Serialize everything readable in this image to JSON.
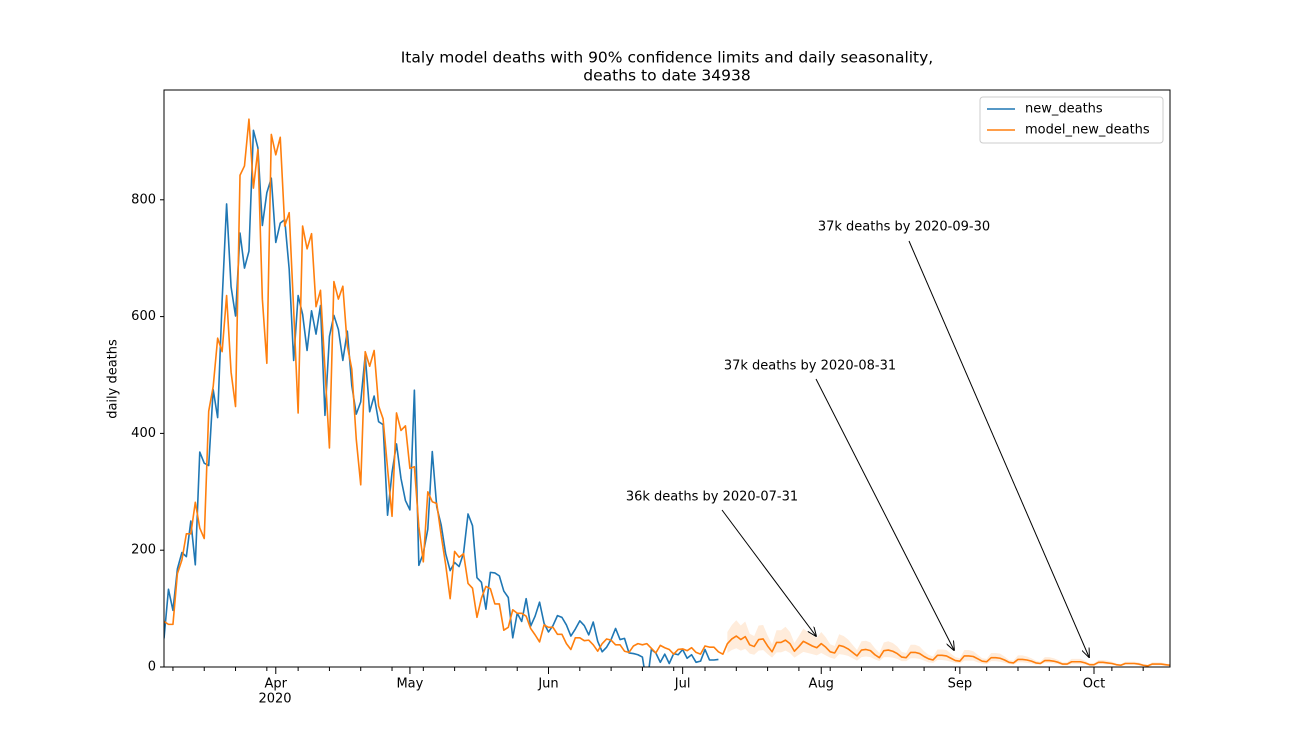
{
  "chart_data": {
    "type": "line",
    "title": [
      "Italy model deaths with 90% confidence limits and daily seasonality,",
      "deaths to date 34938"
    ],
    "y_label": "daily deaths",
    "x_year": "2020",
    "categories": [
      null,
      null,
      null,
      null,
      null,
      null,
      null,
      null,
      null,
      null,
      null,
      null,
      null,
      null,
      null,
      null,
      null,
      null,
      null,
      null,
      null,
      null,
      null,
      null,
      null,
      "Apr",
      null,
      null,
      null,
      null,
      null,
      null,
      null,
      null,
      null,
      null,
      null,
      null,
      null,
      null,
      null,
      null,
      null,
      null,
      null,
      null,
      null,
      null,
      null,
      null,
      null,
      null,
      null,
      null,
      null,
      "May",
      null,
      null,
      null,
      null,
      null,
      null,
      null,
      null,
      null,
      null,
      null,
      null,
      null,
      null,
      null,
      null,
      null,
      null,
      null,
      null,
      null,
      null,
      null,
      null,
      null,
      null,
      null,
      null,
      null,
      null,
      "Jun",
      null,
      null,
      null,
      null,
      null,
      null,
      null,
      null,
      null,
      null,
      null,
      null,
      null,
      null,
      null,
      null,
      null,
      null,
      null,
      null,
      null,
      null,
      null,
      null,
      null,
      null,
      null,
      null,
      null,
      "Jul",
      null,
      null,
      null,
      null,
      null,
      null,
      null,
      null,
      null,
      null,
      null,
      null,
      null,
      null,
      null,
      null,
      null,
      null,
      null,
      null,
      null,
      null,
      null,
      null,
      null,
      null,
      null,
      null,
      null,
      null,
      "Aug",
      null,
      null,
      null,
      null,
      null,
      null,
      null,
      null,
      null,
      null,
      null,
      null,
      null,
      null,
      null,
      null,
      null,
      null,
      null,
      null,
      null,
      null,
      null,
      null,
      null,
      null,
      null,
      null,
      null,
      null,
      "Sep",
      null,
      null,
      null,
      null,
      null,
      null,
      null,
      null,
      null,
      null,
      null,
      null,
      null,
      null,
      null,
      null,
      null,
      null,
      null,
      null,
      null,
      null,
      null,
      null,
      null,
      null,
      null,
      null,
      null,
      "Oct",
      null,
      null,
      null,
      null,
      null,
      null,
      null,
      null,
      null,
      null,
      null,
      null,
      null,
      null,
      null,
      null,
      null
    ],
    "series": [
      {
        "name": "new_deaths",
        "color": "#1f77b4",
        "values": [
          49,
          133,
          97,
          168,
          196,
          189,
          250,
          175,
          368,
          349,
          345,
          475,
          427,
          627,
          793,
          651,
          601,
          743,
          683,
          712,
          919,
          889,
          756,
          812,
          837,
          727,
          760,
          766,
          681,
          525,
          636,
          604,
          542,
          610,
          570,
          619,
          431,
          566,
          602,
          578,
          525,
          575,
          482,
          433,
          454,
          534,
          437,
          464,
          420,
          415,
          260,
          333,
          382,
          323,
          285,
          269,
          474,
          174,
          195,
          236,
          369,
          274,
          243,
          194,
          165,
          179,
          172,
          195,
          262,
          242,
          153,
          145,
          99,
          162,
          161,
          156,
          130,
          119,
          50,
          92,
          78,
          117,
          70,
          87,
          111,
          75,
          60,
          71,
          88,
          85,
          72,
          53,
          65,
          79,
          71,
          55,
          77,
          44,
          26,
          34,
          47,
          66,
          47,
          49,
          24,
          23,
          21,
          17,
          -31,
          30,
          24,
          8,
          22,
          6,
          23,
          21,
          30,
          15,
          21,
          8,
          10,
          30,
          12,
          12,
          13,
          null,
          null,
          null,
          null,
          null,
          null,
          null,
          null,
          null,
          null,
          null,
          null,
          null,
          null,
          null,
          null,
          null,
          null,
          null,
          null,
          null,
          null,
          null,
          null,
          null,
          null,
          null,
          null,
          null,
          null,
          null,
          null,
          null,
          null,
          null,
          null,
          null,
          null,
          null,
          null,
          null,
          null,
          null,
          null,
          null,
          null,
          null,
          null,
          null,
          null,
          null,
          null,
          null,
          null,
          null,
          null,
          null,
          null,
          null,
          null,
          null,
          null,
          null,
          null,
          null,
          null,
          null,
          null,
          null,
          null,
          null,
          null,
          null,
          null,
          null,
          null,
          null,
          null,
          null,
          null,
          null,
          null,
          null,
          null,
          null,
          null,
          null,
          null,
          null,
          null,
          null,
          null,
          null,
          null,
          null,
          null,
          null,
          null,
          null,
          null,
          null
        ]
      },
      {
        "name": "model_new_deaths",
        "color": "#ff7f0e",
        "values": [
          78,
          73,
          73,
          160,
          183,
          228,
          228,
          282,
          238,
          220,
          438,
          480,
          563,
          540,
          636,
          505,
          446,
          842,
          858,
          938,
          820,
          886,
          630,
          520,
          912,
          877,
          907,
          755,
          778,
          612,
          435,
          755,
          716,
          742,
          617,
          645,
          510,
          375,
          660,
          630,
          652,
          550,
          510,
          390,
          312,
          540,
          515,
          542,
          447,
          425,
          340,
          258,
          435,
          405,
          413,
          340,
          343,
          240,
          180,
          300,
          283,
          280,
          225,
          175,
          117,
          198,
          188,
          194,
          143,
          135,
          85,
          118,
          138,
          134,
          108,
          108,
          63,
          68,
          98,
          92,
          92,
          87,
          66,
          55,
          43,
          72,
          68,
          68,
          56,
          56,
          40,
          30,
          50,
          50,
          45,
          46,
          38,
          27,
          40,
          48,
          46,
          38,
          38,
          27,
          25,
          36,
          40,
          38,
          40,
          32,
          24,
          37,
          33,
          30,
          22,
          30,
          31,
          28,
          33,
          25,
          22,
          36,
          34,
          34,
          26,
          22,
          40,
          48,
          53,
          47,
          52,
          38,
          35,
          47,
          48,
          36,
          26,
          42,
          42,
          46,
          40,
          27,
          35,
          44,
          40,
          36,
          33,
          40,
          34,
          26,
          24,
          37,
          35,
          31,
          25,
          19,
          29,
          30,
          28,
          21,
          16,
          28,
          29,
          27,
          23,
          17,
          16,
          25,
          25,
          23,
          18,
          14,
          12,
          20,
          20,
          19,
          15,
          11,
          10,
          19,
          19,
          18,
          14,
          10,
          9,
          16,
          16,
          15,
          12,
          8,
          7,
          13,
          13,
          12,
          10,
          7,
          6,
          11,
          11,
          10,
          8,
          5,
          5,
          9,
          9,
          9,
          7,
          4,
          4,
          8,
          8,
          7,
          6,
          4,
          3,
          6,
          6,
          6,
          5,
          3,
          2,
          5,
          5,
          5,
          4,
          3
        ]
      }
    ],
    "band": {
      "color": "#ff7f0e",
      "lower": [
        null,
        null,
        null,
        null,
        null,
        null,
        null,
        null,
        null,
        null,
        null,
        null,
        null,
        null,
        null,
        null,
        null,
        null,
        null,
        null,
        null,
        null,
        null,
        null,
        null,
        null,
        null,
        null,
        null,
        null,
        null,
        null,
        null,
        null,
        null,
        null,
        null,
        null,
        null,
        null,
        null,
        null,
        null,
        null,
        null,
        null,
        null,
        null,
        null,
        null,
        null,
        null,
        null,
        null,
        null,
        null,
        null,
        null,
        null,
        null,
        null,
        null,
        null,
        null,
        null,
        null,
        null,
        null,
        null,
        null,
        null,
        null,
        null,
        null,
        null,
        null,
        null,
        null,
        null,
        null,
        null,
        null,
        null,
        null,
        null,
        null,
        null,
        null,
        null,
        null,
        null,
        null,
        null,
        null,
        null,
        null,
        null,
        null,
        null,
        null,
        null,
        null,
        null,
        null,
        null,
        null,
        null,
        null,
        null,
        null,
        null,
        null,
        null,
        null,
        null,
        null,
        null,
        null,
        null,
        null,
        null,
        null,
        null,
        null,
        null,
        null,
        24,
        29,
        32,
        28,
        31,
        23,
        21,
        28,
        29,
        22,
        16,
        25,
        25,
        28,
        24,
        16,
        21,
        26,
        24,
        22,
        20,
        24,
        20,
        16,
        14,
        22,
        21,
        19,
        15,
        11,
        17,
        18,
        17,
        13,
        10,
        17,
        17,
        16,
        14,
        10,
        10,
        15,
        15,
        14,
        11,
        8,
        7,
        12,
        12,
        11,
        9,
        7,
        6,
        11,
        11,
        11,
        8,
        6,
        5,
        10,
        10,
        9,
        7,
        5,
        4,
        8,
        8,
        7,
        6,
        4,
        4,
        7,
        7,
        6,
        5,
        3,
        3,
        5,
        5,
        5,
        4,
        2,
        2,
        5,
        5,
        4,
        4,
        2,
        2,
        4,
        4,
        4,
        3,
        2,
        1,
        3,
        3,
        3,
        2,
        2
      ],
      "upper": [
        null,
        null,
        null,
        null,
        null,
        null,
        null,
        null,
        null,
        null,
        null,
        null,
        null,
        null,
        null,
        null,
        null,
        null,
        null,
        null,
        null,
        null,
        null,
        null,
        null,
        null,
        null,
        null,
        null,
        null,
        null,
        null,
        null,
        null,
        null,
        null,
        null,
        null,
        null,
        null,
        null,
        null,
        null,
        null,
        null,
        null,
        null,
        null,
        null,
        null,
        null,
        null,
        null,
        null,
        null,
        null,
        null,
        null,
        null,
        null,
        null,
        null,
        null,
        null,
        null,
        null,
        null,
        null,
        null,
        null,
        null,
        null,
        null,
        null,
        null,
        null,
        null,
        null,
        null,
        null,
        null,
        null,
        null,
        null,
        null,
        null,
        null,
        null,
        null,
        null,
        null,
        null,
        null,
        null,
        null,
        null,
        null,
        null,
        null,
        null,
        null,
        null,
        null,
        null,
        null,
        null,
        null,
        null,
        null,
        null,
        null,
        null,
        null,
        null,
        null,
        null,
        null,
        null,
        null,
        null,
        null,
        null,
        null,
        null,
        null,
        null,
        60,
        72,
        80,
        71,
        78,
        57,
        53,
        71,
        72,
        54,
        39,
        63,
        63,
        69,
        60,
        41,
        53,
        66,
        60,
        54,
        50,
        60,
        51,
        39,
        36,
        56,
        53,
        47,
        38,
        29,
        44,
        45,
        42,
        32,
        24,
        42,
        44,
        41,
        35,
        26,
        24,
        38,
        38,
        35,
        27,
        21,
        18,
        30,
        30,
        29,
        23,
        17,
        15,
        29,
        29,
        27,
        21,
        15,
        14,
        24,
        24,
        23,
        18,
        12,
        11,
        20,
        20,
        18,
        15,
        11,
        9,
        17,
        17,
        15,
        12,
        8,
        8,
        14,
        14,
        14,
        11,
        6,
        6,
        12,
        12,
        11,
        9,
        6,
        5,
        9,
        9,
        9,
        8,
        5,
        3,
        8,
        8,
        8,
        6,
        5
      ]
    },
    "annotations": [
      "36k deaths by 2020-07-31",
      "37k deaths by 2020-08-31",
      "37k deaths by 2020-09-30"
    ],
    "ylim": [
      0,
      988
    ],
    "yticks": [
      0,
      200,
      400,
      600,
      800
    ],
    "legend": "upper right",
    "grid": false
  }
}
